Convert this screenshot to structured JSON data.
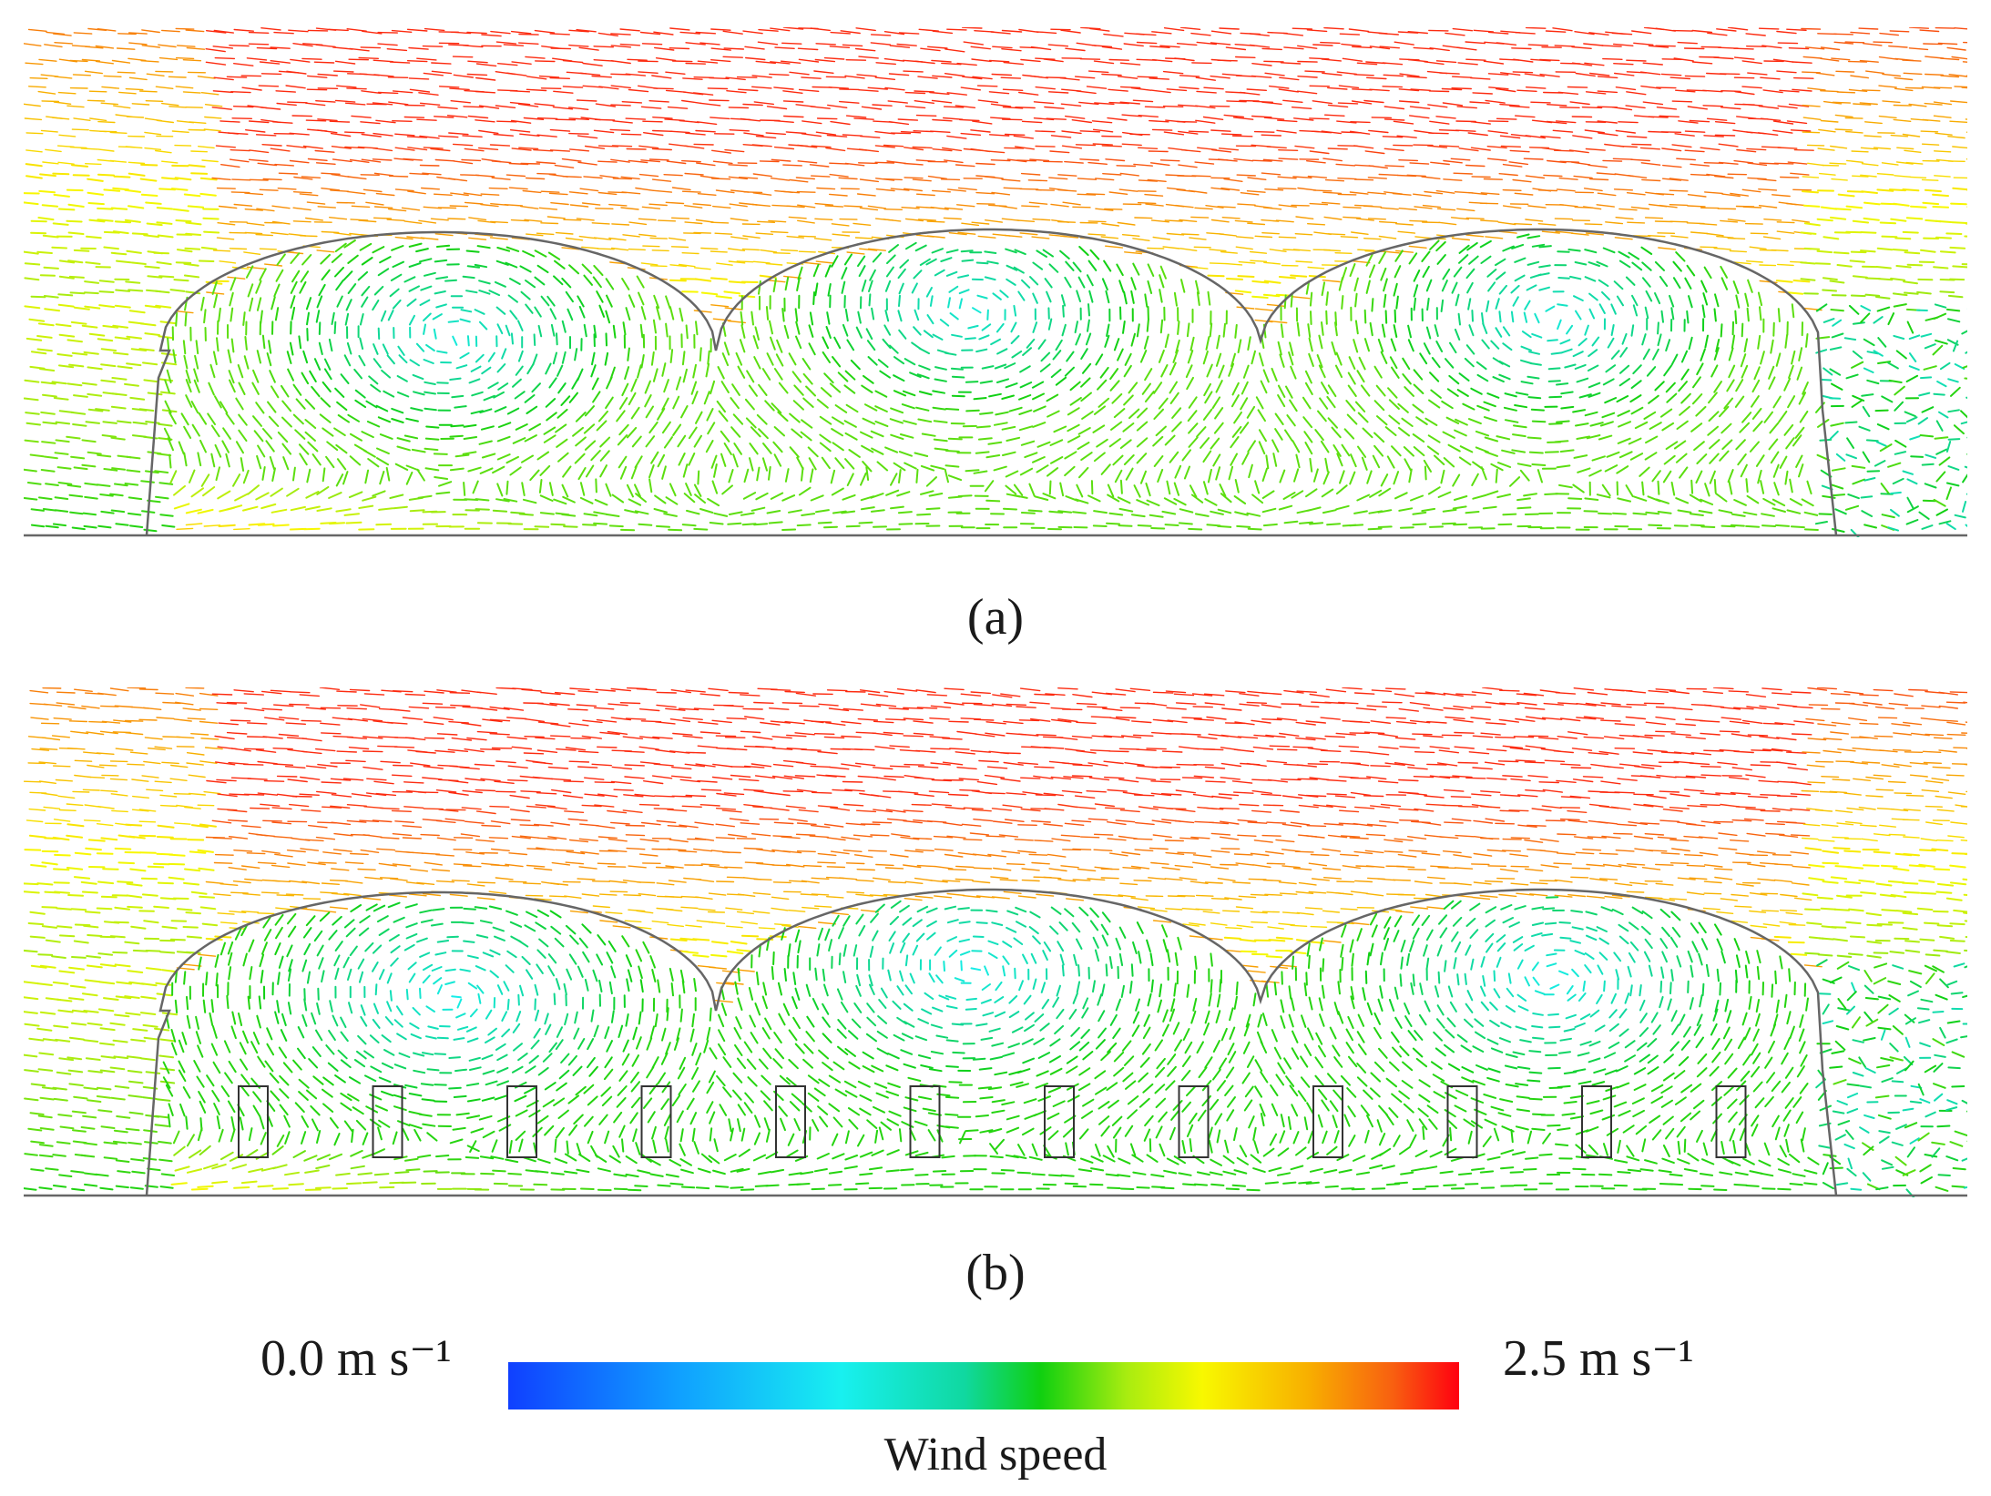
{
  "panels": [
    {
      "id": "a",
      "label": "(a)",
      "has_obstacles": false
    },
    {
      "id": "b",
      "label": "(b)",
      "has_obstacles": true,
      "obstacle_count": 12
    }
  ],
  "colorbar": {
    "min_label": "0.0 m s⁻¹",
    "max_label": "2.5 m s⁻¹",
    "title": "Wind speed",
    "min_value": 0.0,
    "max_value": 2.5,
    "stops": [
      "#1040ff",
      "#10a0ff",
      "#18f0f0",
      "#10d8a0",
      "#10d010",
      "#a8ec10",
      "#f8f800",
      "#f8b000",
      "#f86010",
      "#ff0010"
    ]
  },
  "colors": {
    "outline": "#666666",
    "obstacle": "#333333"
  }
}
